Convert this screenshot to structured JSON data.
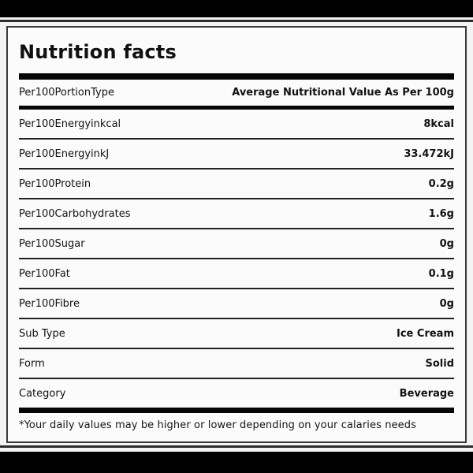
{
  "title": "Nutrition facts",
  "table": {
    "rows": [
      {
        "label": "Per100PortionType",
        "value": "Average Nutritional Value As Per 100g"
      },
      {
        "label": "Per100Energyinkcal",
        "value": "8kcal"
      },
      {
        "label": "Per100EnergyinkJ",
        "value": "33.472kJ"
      },
      {
        "label": "Per100Protein",
        "value": "0.2g"
      },
      {
        "label": "Per100Carbohydrates",
        "value": "1.6g"
      },
      {
        "label": "Per100Sugar",
        "value": "0g"
      },
      {
        "label": "Per100Fat",
        "value": "0.1g"
      },
      {
        "label": "Per100Fibre",
        "value": "0g"
      },
      {
        "label": "Sub Type",
        "value": "Ice Cream"
      },
      {
        "label": "Form",
        "value": "Solid"
      },
      {
        "label": "Category",
        "value": "Beverage"
      }
    ]
  },
  "footnote": "*Your daily values may be higher or lower depending on your calaries needs",
  "colors": {
    "ink": "#111111",
    "divider": "#060606",
    "card_background": "#fbfbfb",
    "page_background": "#f3f3f3",
    "frame_bar": "#000000"
  }
}
